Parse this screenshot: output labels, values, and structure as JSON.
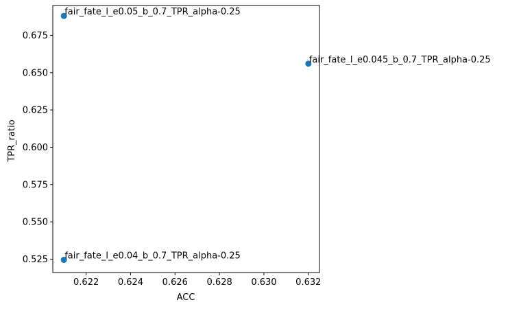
{
  "chart_data": {
    "type": "scatter",
    "title": "",
    "xlabel": "ACC",
    "ylabel": "TPR_ratio",
    "xlim": [
      0.6205,
      0.6325
    ],
    "ylim": [
      0.516,
      0.695
    ],
    "xticks": [
      0.622,
      0.624,
      0.626,
      0.628,
      0.63,
      0.632
    ],
    "xtick_labels": [
      "0.622",
      "0.624",
      "0.626",
      "0.628",
      "0.630",
      "0.632"
    ],
    "yticks": [
      0.525,
      0.55,
      0.575,
      0.6,
      0.625,
      0.65,
      0.675
    ],
    "ytick_labels": [
      "0.525",
      "0.550",
      "0.575",
      "0.600",
      "0.625",
      "0.650",
      "0.675"
    ],
    "grid": false,
    "marker_color": "#1f77b4",
    "points": [
      {
        "x": 0.621,
        "y": 0.688,
        "label": "fair_fate_l_e0.05_b_0.7_TPR_alpha-0.25"
      },
      {
        "x": 0.632,
        "y": 0.656,
        "label": "fair_fate_l_e0.045_b_0.7_TPR_alpha-0.25"
      },
      {
        "x": 0.621,
        "y": 0.5245,
        "label": "fair_fate_l_e0.04_b_0.7_TPR_alpha-0.25"
      }
    ]
  }
}
